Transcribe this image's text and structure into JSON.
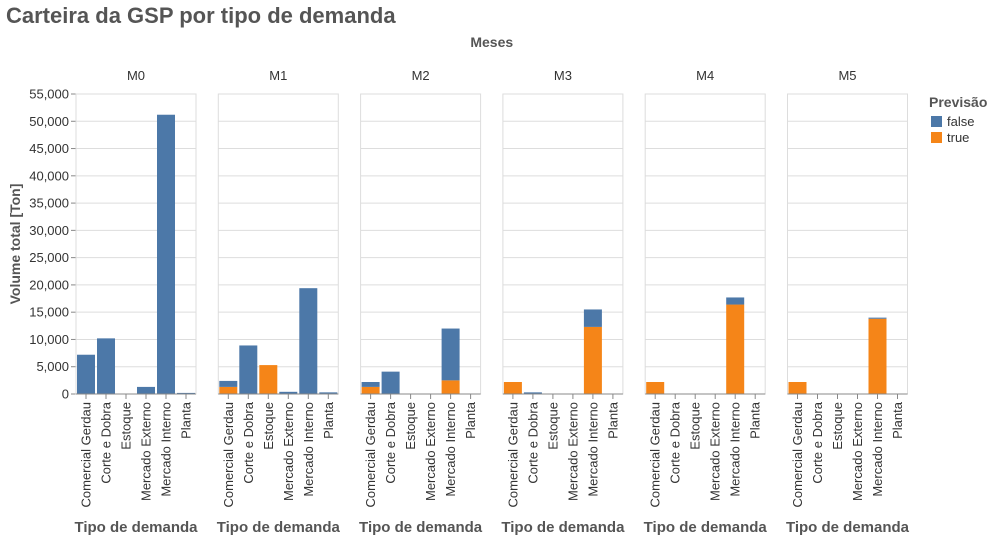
{
  "chart_data": {
    "type": "bar",
    "stacked": true,
    "title": "Carteira da GSP por tipo de demanda",
    "facet_label": "Meses",
    "facets": [
      "M0",
      "M1",
      "M2",
      "M3",
      "M4",
      "M5"
    ],
    "categories": [
      "Comercial Gerdau",
      "Corte e Dobra",
      "Estoque",
      "Mercado Externo",
      "Mercado Interno",
      "Planta"
    ],
    "xlabel": "Tipo de demanda",
    "ylabel": "Volume total [Ton]",
    "ylim": [
      0,
      55000
    ],
    "yticks": [
      0,
      5000,
      10000,
      15000,
      20000,
      25000,
      30000,
      35000,
      40000,
      45000,
      50000,
      55000
    ],
    "ytick_labels": [
      "0",
      "5,000",
      "10,000",
      "15,000",
      "20,000",
      "25,000",
      "30,000",
      "35,000",
      "40,000",
      "45,000",
      "50,000",
      "55,000"
    ],
    "grid": true,
    "legend": {
      "title": "Previsão",
      "placement": "top-right",
      "entries": [
        {
          "label": "false",
          "color": "#4c78a8"
        },
        {
          "label": "true",
          "color": "#f58518"
        }
      ]
    },
    "series": [
      {
        "name": "false",
        "color": "#4c78a8",
        "values": {
          "M0": [
            7200,
            10200,
            0,
            1300,
            51200,
            200
          ],
          "M1": [
            1100,
            8900,
            0,
            400,
            19400,
            300
          ],
          "M2": [
            900,
            4100,
            0,
            0,
            9500,
            0
          ],
          "M3": [
            0,
            300,
            0,
            0,
            3200,
            0
          ],
          "M4": [
            0,
            0,
            0,
            0,
            1300,
            0
          ],
          "M5": [
            0,
            0,
            0,
            0,
            200,
            0
          ]
        }
      },
      {
        "name": "true",
        "color": "#f58518",
        "values": {
          "M0": [
            0,
            0,
            0,
            0,
            0,
            0
          ],
          "M1": [
            1300,
            0,
            5300,
            0,
            0,
            0
          ],
          "M2": [
            1300,
            0,
            0,
            0,
            2500,
            0
          ],
          "M3": [
            2200,
            0,
            0,
            0,
            12300,
            0
          ],
          "M4": [
            2200,
            0,
            0,
            0,
            16400,
            0
          ],
          "M5": [
            2200,
            0,
            0,
            0,
            13800,
            0
          ]
        }
      }
    ]
  }
}
